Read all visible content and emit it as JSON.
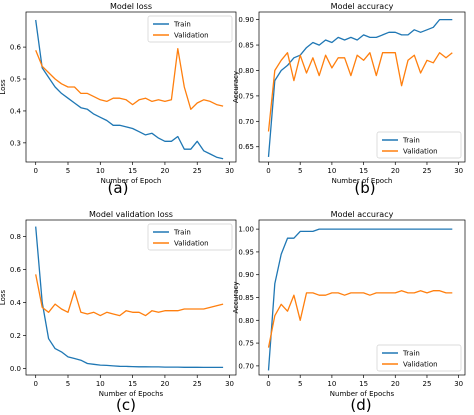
{
  "chart_data": [
    {
      "type": "line",
      "title": "Model loss",
      "xlabel": "Number of Epoch",
      "ylabel": "Loss",
      "caption": "(a)",
      "xlim": [
        -1.5,
        31
      ],
      "ylim": [
        0.24,
        0.71
      ],
      "xticks": [
        0,
        5,
        10,
        15,
        20,
        25,
        30
      ],
      "xtick_labels": [
        "0",
        "5",
        "10",
        "15",
        "20",
        "25",
        "30"
      ],
      "yticks": [
        0.3,
        0.4,
        0.5,
        0.6
      ],
      "ytick_labels": [
        "0.3",
        "0.4",
        "0.5",
        "0.6"
      ],
      "legend_position": "top-right",
      "series": [
        {
          "name": "Train",
          "color": "#1f77b4",
          "x": [
            0,
            1,
            2,
            3,
            4,
            5,
            6,
            7,
            8,
            9,
            10,
            11,
            12,
            13,
            14,
            15,
            16,
            17,
            18,
            19,
            20,
            21,
            22,
            23,
            24,
            25,
            26,
            27,
            28,
            29
          ],
          "y": [
            0.685,
            0.535,
            0.505,
            0.475,
            0.455,
            0.44,
            0.425,
            0.41,
            0.405,
            0.39,
            0.38,
            0.37,
            0.355,
            0.355,
            0.35,
            0.345,
            0.335,
            0.325,
            0.33,
            0.315,
            0.305,
            0.305,
            0.32,
            0.28,
            0.28,
            0.305,
            0.275,
            0.265,
            0.255,
            0.25
          ]
        },
        {
          "name": "Validation",
          "color": "#ff7f0e",
          "x": [
            0,
            1,
            2,
            3,
            4,
            5,
            6,
            7,
            8,
            9,
            10,
            11,
            12,
            13,
            14,
            15,
            16,
            17,
            18,
            19,
            20,
            21,
            22,
            23,
            24,
            25,
            26,
            27,
            28,
            29
          ],
          "y": [
            0.59,
            0.54,
            0.52,
            0.5,
            0.485,
            0.475,
            0.475,
            0.455,
            0.455,
            0.445,
            0.435,
            0.43,
            0.44,
            0.44,
            0.435,
            0.42,
            0.435,
            0.44,
            0.43,
            0.435,
            0.43,
            0.435,
            0.595,
            0.475,
            0.405,
            0.425,
            0.435,
            0.43,
            0.42,
            0.415
          ]
        }
      ]
    },
    {
      "type": "line",
      "title": "Model accuracy",
      "xlabel": "Number of Epoch",
      "ylabel": "Accuracy",
      "caption": "(b)",
      "xlim": [
        -1.5,
        31
      ],
      "ylim": [
        0.62,
        0.915
      ],
      "xticks": [
        0,
        5,
        10,
        15,
        20,
        25,
        30
      ],
      "xtick_labels": [
        "0",
        "5",
        "10",
        "15",
        "20",
        "25",
        "30"
      ],
      "yticks": [
        0.65,
        0.7,
        0.75,
        0.8,
        0.85,
        0.9
      ],
      "ytick_labels": [
        "0.65",
        "0.70",
        "0.75",
        "0.80",
        "0.85",
        "0.90"
      ],
      "legend_position": "bottom-right",
      "series": [
        {
          "name": "Train",
          "color": "#1f77b4",
          "x": [
            0,
            1,
            2,
            3,
            4,
            5,
            6,
            7,
            8,
            9,
            10,
            11,
            12,
            13,
            14,
            15,
            16,
            17,
            18,
            19,
            20,
            21,
            22,
            23,
            24,
            25,
            26,
            27,
            28,
            29
          ],
          "y": [
            0.63,
            0.78,
            0.8,
            0.81,
            0.825,
            0.83,
            0.845,
            0.855,
            0.85,
            0.86,
            0.855,
            0.865,
            0.86,
            0.865,
            0.86,
            0.87,
            0.865,
            0.865,
            0.87,
            0.875,
            0.875,
            0.87,
            0.87,
            0.88,
            0.875,
            0.88,
            0.885,
            0.9,
            0.9,
            0.9
          ]
        },
        {
          "name": "Validation",
          "color": "#ff7f0e",
          "x": [
            0,
            1,
            2,
            3,
            4,
            5,
            6,
            7,
            8,
            9,
            10,
            11,
            12,
            13,
            14,
            15,
            16,
            17,
            18,
            19,
            20,
            21,
            22,
            23,
            24,
            25,
            26,
            27,
            28,
            29
          ],
          "y": [
            0.68,
            0.8,
            0.82,
            0.835,
            0.78,
            0.83,
            0.795,
            0.825,
            0.79,
            0.83,
            0.805,
            0.825,
            0.825,
            0.79,
            0.83,
            0.82,
            0.835,
            0.79,
            0.835,
            0.835,
            0.835,
            0.77,
            0.82,
            0.83,
            0.795,
            0.82,
            0.815,
            0.835,
            0.825,
            0.835
          ]
        }
      ]
    },
    {
      "type": "line",
      "title": "Model validation loss",
      "xlabel": "Number of Epochs",
      "ylabel": "Loss",
      "caption": "(c)",
      "xlim": [
        -1.5,
        31
      ],
      "ylim": [
        -0.04,
        0.9
      ],
      "xticks": [
        0,
        5,
        10,
        15,
        20,
        25,
        30
      ],
      "xtick_labels": [
        "0",
        "5",
        "10",
        "15",
        "20",
        "25",
        "30"
      ],
      "yticks": [
        0.0,
        0.2,
        0.4,
        0.6,
        0.8
      ],
      "ytick_labels": [
        "0.0",
        "0.2",
        "0.4",
        "0.6",
        "0.8"
      ],
      "legend_position": "top-right",
      "series": [
        {
          "name": "Train",
          "color": "#1f77b4",
          "x": [
            0,
            1,
            2,
            3,
            4,
            5,
            6,
            7,
            8,
            9,
            10,
            11,
            12,
            13,
            14,
            15,
            16,
            17,
            18,
            19,
            20,
            21,
            22,
            23,
            24,
            25,
            26,
            27,
            28,
            29
          ],
          "y": [
            0.86,
            0.4,
            0.18,
            0.12,
            0.1,
            0.07,
            0.06,
            0.05,
            0.03,
            0.025,
            0.02,
            0.018,
            0.015,
            0.013,
            0.012,
            0.011,
            0.01,
            0.01,
            0.009,
            0.009,
            0.008,
            0.008,
            0.008,
            0.007,
            0.007,
            0.007,
            0.006,
            0.006,
            0.006,
            0.006
          ]
        },
        {
          "name": "Validation",
          "color": "#ff7f0e",
          "x": [
            0,
            1,
            2,
            3,
            4,
            5,
            6,
            7,
            8,
            9,
            10,
            11,
            12,
            13,
            14,
            15,
            16,
            17,
            18,
            19,
            20,
            21,
            22,
            23,
            24,
            25,
            26,
            27,
            28,
            29
          ],
          "y": [
            0.57,
            0.37,
            0.34,
            0.39,
            0.36,
            0.34,
            0.47,
            0.34,
            0.33,
            0.34,
            0.32,
            0.34,
            0.33,
            0.32,
            0.35,
            0.34,
            0.34,
            0.32,
            0.35,
            0.34,
            0.35,
            0.35,
            0.35,
            0.36,
            0.36,
            0.36,
            0.36,
            0.37,
            0.38,
            0.39
          ]
        }
      ]
    },
    {
      "type": "line",
      "title": "Model accuracy",
      "xlabel": "Number of Epochs",
      "ylabel": "Accuracy",
      "caption": "(d)",
      "xlim": [
        -1.5,
        31
      ],
      "ylim": [
        0.68,
        1.02
      ],
      "xticks": [
        0,
        5,
        10,
        15,
        20,
        25,
        30
      ],
      "xtick_labels": [
        "0",
        "5",
        "10",
        "15",
        "20",
        "25",
        "30"
      ],
      "yticks": [
        0.7,
        0.75,
        0.8,
        0.85,
        0.9,
        0.95,
        1.0
      ],
      "ytick_labels": [
        "0.70",
        "0.75",
        "0.80",
        "0.85",
        "0.90",
        "0.95",
        "1.00"
      ],
      "legend_position": "bottom-right",
      "series": [
        {
          "name": "Train",
          "color": "#1f77b4",
          "x": [
            0,
            1,
            2,
            3,
            4,
            5,
            6,
            7,
            8,
            9,
            10,
            11,
            12,
            13,
            14,
            15,
            16,
            17,
            18,
            19,
            20,
            21,
            22,
            23,
            24,
            25,
            26,
            27,
            28,
            29
          ],
          "y": [
            0.69,
            0.88,
            0.945,
            0.98,
            0.98,
            0.995,
            0.995,
            0.995,
            1.0,
            1.0,
            1.0,
            1.0,
            1.0,
            1.0,
            1.0,
            1.0,
            1.0,
            1.0,
            1.0,
            1.0,
            1.0,
            1.0,
            1.0,
            1.0,
            1.0,
            1.0,
            1.0,
            1.0,
            1.0,
            1.0
          ]
        },
        {
          "name": "Validation",
          "color": "#ff7f0e",
          "x": [
            0,
            1,
            2,
            3,
            4,
            5,
            6,
            7,
            8,
            9,
            10,
            11,
            12,
            13,
            14,
            15,
            16,
            17,
            18,
            19,
            20,
            21,
            22,
            23,
            24,
            25,
            26,
            27,
            28,
            29
          ],
          "y": [
            0.74,
            0.81,
            0.835,
            0.82,
            0.855,
            0.8,
            0.86,
            0.86,
            0.855,
            0.855,
            0.86,
            0.86,
            0.855,
            0.86,
            0.86,
            0.86,
            0.855,
            0.86,
            0.86,
            0.86,
            0.86,
            0.865,
            0.86,
            0.86,
            0.865,
            0.86,
            0.865,
            0.865,
            0.86,
            0.86
          ]
        }
      ]
    }
  ]
}
